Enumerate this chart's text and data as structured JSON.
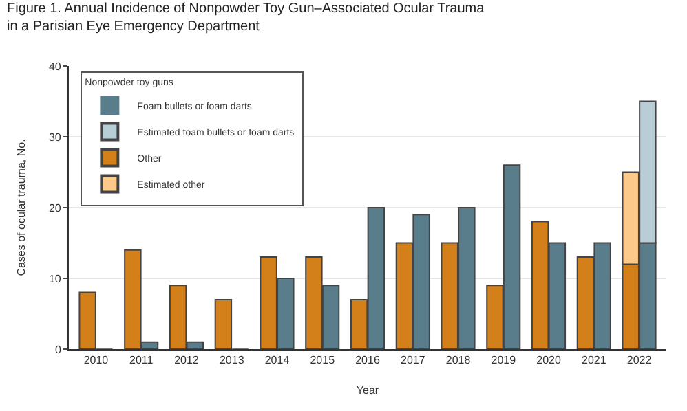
{
  "chart_data": {
    "type": "bar",
    "title": "Figure 1. Annual Incidence of Nonpowder Toy Gun–Associated Ocular Trauma\nin a Parisian Eye Emergency Department",
    "xlabel": "Year",
    "ylabel": "Cases of ocular trauma, No.",
    "legend_title": "Nonpowder toy guns",
    "categories": [
      "2010",
      "2011",
      "2012",
      "2013",
      "2014",
      "2015",
      "2016",
      "2017",
      "2018",
      "2019",
      "2020",
      "2021",
      "2022"
    ],
    "series": [
      {
        "name": "Other",
        "color": "#d4801a",
        "values": [
          8,
          14,
          9,
          7,
          13,
          13,
          7,
          15,
          15,
          9,
          18,
          13,
          12
        ]
      },
      {
        "name": "Estimated other",
        "color": "#fdc98a",
        "values": [
          null,
          null,
          null,
          null,
          null,
          null,
          null,
          null,
          null,
          null,
          null,
          null,
          13
        ],
        "base": [
          null,
          null,
          null,
          null,
          null,
          null,
          null,
          null,
          null,
          null,
          null,
          null,
          12
        ]
      },
      {
        "name": "Foam bullets or foam darts",
        "color": "#5a7d8c",
        "values": [
          0,
          1,
          1,
          0,
          10,
          9,
          20,
          19,
          20,
          26,
          15,
          15,
          15
        ]
      },
      {
        "name": "Estimated foam bullets or foam darts",
        "color": "#b9cdd6",
        "values": [
          null,
          null,
          null,
          null,
          null,
          null,
          null,
          null,
          null,
          null,
          null,
          null,
          20
        ],
        "base": [
          null,
          null,
          null,
          null,
          null,
          null,
          null,
          null,
          null,
          null,
          null,
          null,
          15
        ]
      }
    ],
    "ylim": [
      0,
      40
    ],
    "yticks": [
      0,
      10,
      20,
      30,
      40
    ],
    "grid": "y",
    "legend": "top left"
  }
}
